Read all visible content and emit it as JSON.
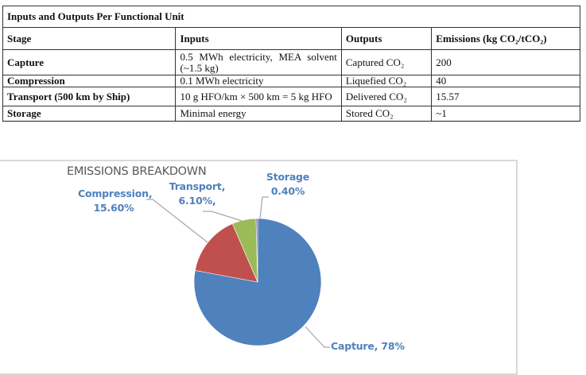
{
  "table": {
    "title": "Inputs and Outputs Per Functional Unit",
    "headers": [
      "Stage",
      "Inputs",
      "Outputs",
      "Emissions (kg CO₂/tCO₂)"
    ],
    "rows": [
      {
        "stage": "Capture",
        "inputs": "0.5 MWh electricity, MEA solvent (~1.5 kg)",
        "outputs": "Captured CO₂",
        "emissions": "200"
      },
      {
        "stage": "Compression",
        "inputs": "0.1 MWh electricity",
        "outputs": "Liquefied CO₂",
        "emissions": "40"
      },
      {
        "stage": "Transport (500 km by Ship)",
        "inputs": "10 g HFO/km × 500 km = 5 kg HFO",
        "outputs": "Delivered CO₂",
        "emissions": "15.57"
      },
      {
        "stage": "Storage",
        "inputs": "Minimal energy",
        "outputs": "Stored CO₂",
        "emissions": "~1"
      }
    ]
  },
  "chart": {
    "title": "EMISSIONS BREAKDOWN",
    "labels": {
      "compression_line1": "Compression,",
      "compression_line2": "15.60%",
      "transport_line1": "Transport,",
      "transport_line2": "6.10%,",
      "storage_line1": "Storage",
      "storage_line2": "0.40%",
      "capture": "Capture, 78%"
    },
    "colors": {
      "capture": "#4f81bd",
      "compression": "#c0504d",
      "transport": "#9bbb59",
      "storage": "#8064a2",
      "label_text": "#4f81bd",
      "title_text": "#595959",
      "leader_line": "#a6a6a6"
    }
  },
  "chart_data": {
    "type": "pie",
    "title": "EMISSIONS BREAKDOWN",
    "categories": [
      "Capture",
      "Compression",
      "Transport",
      "Storage"
    ],
    "values": [
      78,
      15.6,
      6.1,
      0.4
    ],
    "value_labels": [
      "Capture, 78%",
      "Compression, 15.60%",
      "Transport, 6.10%,",
      "Storage 0.40%"
    ],
    "unit": "%",
    "colors": [
      "#4f81bd",
      "#c0504d",
      "#9bbb59",
      "#8064a2"
    ],
    "legend": false
  }
}
